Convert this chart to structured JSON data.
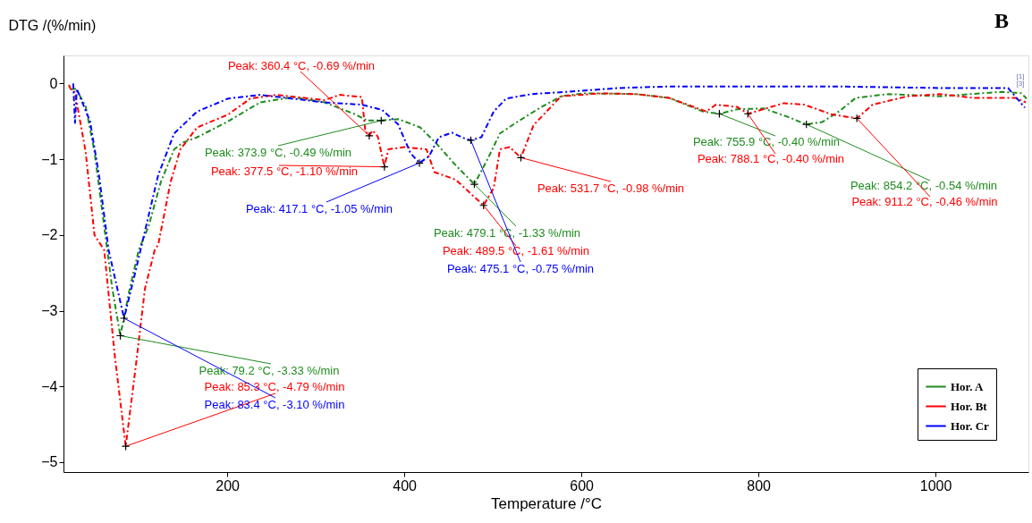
{
  "chart_data": {
    "type": "line",
    "title": "B",
    "xlabel": "Temperature /°C",
    "ylabel": "DTG /(%/min)",
    "xlim": [
      15,
      1105
    ],
    "ylim": [
      -5.13,
      0.37
    ],
    "xticks": [
      200,
      400,
      600,
      800,
      1000
    ],
    "yticks": [
      0,
      -1,
      -2,
      -3,
      -4,
      -5
    ],
    "grid": false,
    "legend": "bottom right",
    "line_style": "dashed",
    "marker": "none",
    "series": [
      {
        "name": "Hor. A",
        "color": "#1e8c1e",
        "x": [
          23,
          29,
          40,
          50,
          60,
          70,
          79.2,
          90,
          100,
          111,
          125,
          140,
          150,
          166,
          201,
          237,
          274,
          310,
          345,
          358,
          373.9,
          393,
          418,
          436,
          458,
          479.1,
          494,
          508,
          526,
          552,
          577,
          604,
          661,
          699,
          737,
          755.9,
          776,
          806,
          833,
          854.2,
          872,
          891,
          910,
          947,
          1005,
          1075,
          1097,
          1103
        ],
        "values": [
          -0.08,
          -0.07,
          -0.3,
          -0.9,
          -1.8,
          -2.7,
          -3.33,
          -2.7,
          -2.2,
          -1.89,
          -1.3,
          -0.87,
          -0.78,
          -0.71,
          -0.5,
          -0.25,
          -0.18,
          -0.25,
          -0.41,
          -0.49,
          -0.49,
          -0.47,
          -0.58,
          -0.79,
          -1.08,
          -1.33,
          -1.0,
          -0.66,
          -0.52,
          -0.33,
          -0.17,
          -0.13,
          -0.14,
          -0.19,
          -0.37,
          -0.4,
          -0.34,
          -0.33,
          -0.44,
          -0.54,
          -0.51,
          -0.37,
          -0.19,
          -0.14,
          -0.17,
          -0.11,
          -0.13,
          -0.2
        ]
      },
      {
        "name": "Hor. Bt",
        "color": "#ff0000",
        "x": [
          21,
          23,
          28,
          40,
          50,
          61,
          73,
          85.3,
          97,
          107,
          118,
          122,
          136,
          147,
          166,
          201,
          226,
          255,
          310,
          327,
          352,
          356,
          360.4,
          364,
          370,
          377.5,
          382,
          400,
          425,
          434,
          458,
          489.5,
          501,
          508,
          519,
          531.7,
          546,
          577,
          623,
          661,
          699,
          741,
          752,
          776,
          788.1,
          829,
          852,
          883,
          911.2,
          929,
          968,
          1005,
          1043,
          1090,
          1102
        ],
        "values": [
          -0.02,
          -0.07,
          -0.12,
          -0.9,
          -2.0,
          -2.2,
          -3.6,
          -4.79,
          -3.7,
          -2.71,
          -2.2,
          -2.13,
          -1.3,
          -0.87,
          -0.58,
          -0.41,
          -0.2,
          -0.15,
          -0.22,
          -0.15,
          -0.18,
          -0.63,
          -0.69,
          -0.62,
          -0.7,
          -1.1,
          -0.87,
          -0.84,
          -0.87,
          -1.17,
          -1.27,
          -1.61,
          -1.38,
          -0.87,
          -0.84,
          -0.98,
          -0.55,
          -0.17,
          -0.13,
          -0.14,
          -0.19,
          -0.37,
          -0.28,
          -0.31,
          -0.4,
          -0.26,
          -0.28,
          -0.41,
          -0.46,
          -0.28,
          -0.17,
          -0.14,
          -0.19,
          -0.19,
          -0.25
        ]
      },
      {
        "name": "Hor. Cr",
        "color": "#0000ff",
        "x": [
          26,
          28,
          30,
          45,
          55,
          66,
          83.4,
          97,
          110,
          122,
          140,
          166,
          201,
          237,
          310,
          352,
          375,
          393,
          407,
          417.1,
          428,
          439,
          454,
          469,
          475.1,
          487,
          501,
          515,
          544,
          585,
          642,
          699,
          776,
          891,
          1005,
          1082,
          1101
        ],
        "values": [
          0,
          -0.52,
          -0.07,
          -0.5,
          -1.2,
          -2.2,
          -3.1,
          -2.45,
          -1.8,
          -1.21,
          -0.66,
          -0.37,
          -0.2,
          -0.15,
          -0.25,
          -0.28,
          -0.35,
          -0.54,
          -0.92,
          -1.05,
          -0.96,
          -0.71,
          -0.65,
          -0.73,
          -0.75,
          -0.71,
          -0.37,
          -0.2,
          -0.14,
          -0.11,
          -0.06,
          -0.04,
          -0.04,
          -0.04,
          -0.06,
          -0.06,
          -0.32
        ]
      }
    ],
    "annotations": [
      {
        "text": "Peak: 79.2 °C, -3.33 %/min",
        "x": 79.2,
        "y": -3.33
      },
      {
        "text": "Peak: 85.3 °C, -4.79 %/min",
        "x": 85.3,
        "y": -4.79
      },
      {
        "text": "Peak: 83.4 °C, -3.10 %/min",
        "x": 83.4,
        "y": -3.1
      },
      {
        "text": "Peak: 360.4 °C, -0.69 %/min",
        "x": 360.4,
        "y": -0.69
      },
      {
        "text": "Peak: 373.9 °C, -0.49 %/min",
        "x": 373.9,
        "y": -0.49
      },
      {
        "text": "Peak: 377.5 °C, -1.10 %/min",
        "x": 377.5,
        "y": -1.1
      },
      {
        "text": "Peak: 417.1 °C, -1.05 %/min",
        "x": 417.1,
        "y": -1.05
      },
      {
        "text": "Peak: 479.1 °C, -1.33 %/min",
        "x": 479.1,
        "y": -1.33
      },
      {
        "text": "Peak: 489.5 °C, -1.61 %/min",
        "x": 489.5,
        "y": -1.61
      },
      {
        "text": "Peak: 475.1 °C, -0.75 %/min",
        "x": 475.1,
        "y": -0.75
      },
      {
        "text": "Peak: 531.7 °C, -0.98 %/min",
        "x": 531.7,
        "y": -0.98
      },
      {
        "text": "Peak: 755.9 °C, -0.40 %/min",
        "x": 755.9,
        "y": -0.4
      },
      {
        "text": "Peak: 788.1 °C, -0.40 %/min",
        "x": 788.1,
        "y": -0.4
      },
      {
        "text": "Peak: 854.2 °C, -0.54 %/min",
        "x": 854.2,
        "y": -0.54
      },
      {
        "text": "Peak: 911.2 °C, -0.46 %/min",
        "x": 911.2,
        "y": -0.46
      },
      "[1]",
      "[3]"
    ]
  }
}
